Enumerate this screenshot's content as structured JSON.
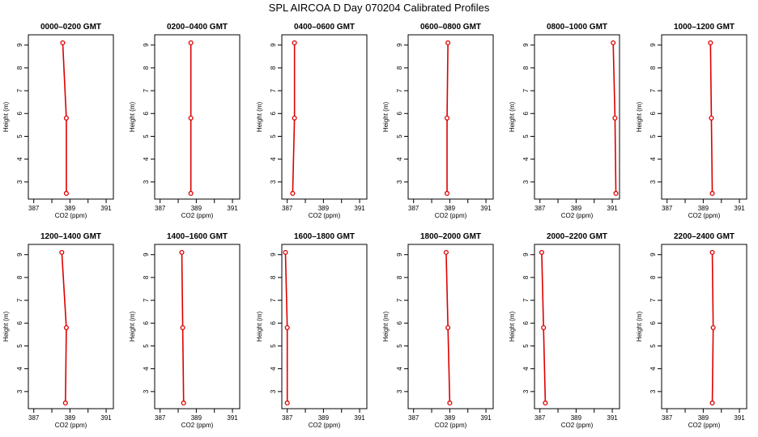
{
  "title": "SPL AIRCOA D  Day 070204  Calibrated Profiles",
  "chart_data": {
    "type": "line",
    "title": "SPL AIRCOA D  Day 070204  Calibrated Profiles",
    "xlabel": "CO2 (ppm)",
    "ylabel": "Height (m)",
    "xlim": [
      386.7,
      391.4
    ],
    "ylim": [
      2.25,
      9.45
    ],
    "xticks": [
      387,
      388,
      389,
      390,
      391
    ],
    "xtick_labels": [
      "387",
      "",
      "389",
      "",
      "391"
    ],
    "yticks": [
      3,
      4,
      5,
      6,
      7,
      8,
      9
    ],
    "heights": [
      9.1,
      5.8,
      2.5
    ],
    "line_color": "#dd0000",
    "marker": "open-circle",
    "panels": [
      {
        "title": "0000–0200 GMT",
        "co2": [
          388.6,
          388.8,
          388.8
        ]
      },
      {
        "title": "0200–0400 GMT",
        "co2": [
          388.7,
          388.7,
          388.7
        ]
      },
      {
        "title": "0400–0600 GMT",
        "co2": [
          387.4,
          387.4,
          387.3
        ]
      },
      {
        "title": "0600–0800 GMT",
        "co2": [
          388.9,
          388.85,
          388.85
        ]
      },
      {
        "title": "0800–1000 GMT",
        "co2": [
          391.05,
          391.15,
          391.2
        ]
      },
      {
        "title": "1000–1200 GMT",
        "co2": [
          389.4,
          389.45,
          389.5
        ]
      },
      {
        "title": "1200–1400 GMT",
        "co2": [
          388.55,
          388.8,
          388.75
        ]
      },
      {
        "title": "1400–1600 GMT",
        "co2": [
          388.2,
          388.25,
          388.3
        ]
      },
      {
        "title": "1600–1800 GMT",
        "co2": [
          386.9,
          387.0,
          387.0
        ]
      },
      {
        "title": "1800–2000 GMT",
        "co2": [
          388.8,
          388.9,
          389.0
        ]
      },
      {
        "title": "2000–2200 GMT",
        "co2": [
          387.1,
          387.2,
          387.3
        ]
      },
      {
        "title": "2200–2400 GMT",
        "co2": [
          389.5,
          389.55,
          389.5
        ]
      }
    ]
  }
}
